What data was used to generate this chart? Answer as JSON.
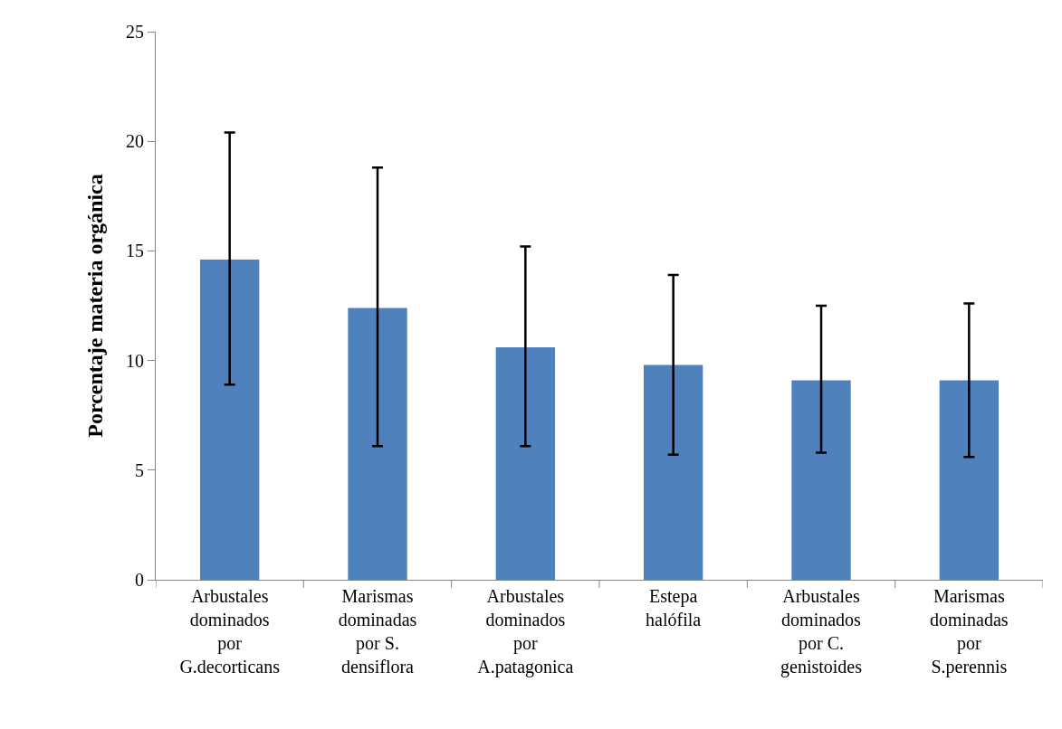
{
  "chart_data": {
    "type": "bar",
    "ylabel": "Porcentaje materia orgánica",
    "categories": [
      "Arbustales dominados por G.decorticans",
      "Marismas dominadas por S. densiflora",
      "Arbustales dominados por A.patagonica",
      "Estepa halófila",
      "Arbustales dominados por C. genistoides",
      "Marismas dominadas por S.perennis"
    ],
    "values": [
      14.6,
      12.4,
      10.6,
      9.8,
      9.1,
      9.1
    ],
    "errors": [
      [
        8.9,
        20.4
      ],
      [
        6.1,
        18.8
      ],
      [
        6.1,
        15.2
      ],
      [
        5.7,
        13.9
      ],
      [
        5.8,
        12.5
      ],
      [
        5.6,
        12.6
      ]
    ],
    "color": "#4f81bd",
    "ylim": [
      0,
      25
    ],
    "yticks": [
      0,
      5,
      10,
      15,
      20,
      25
    ],
    "grid": false
  }
}
